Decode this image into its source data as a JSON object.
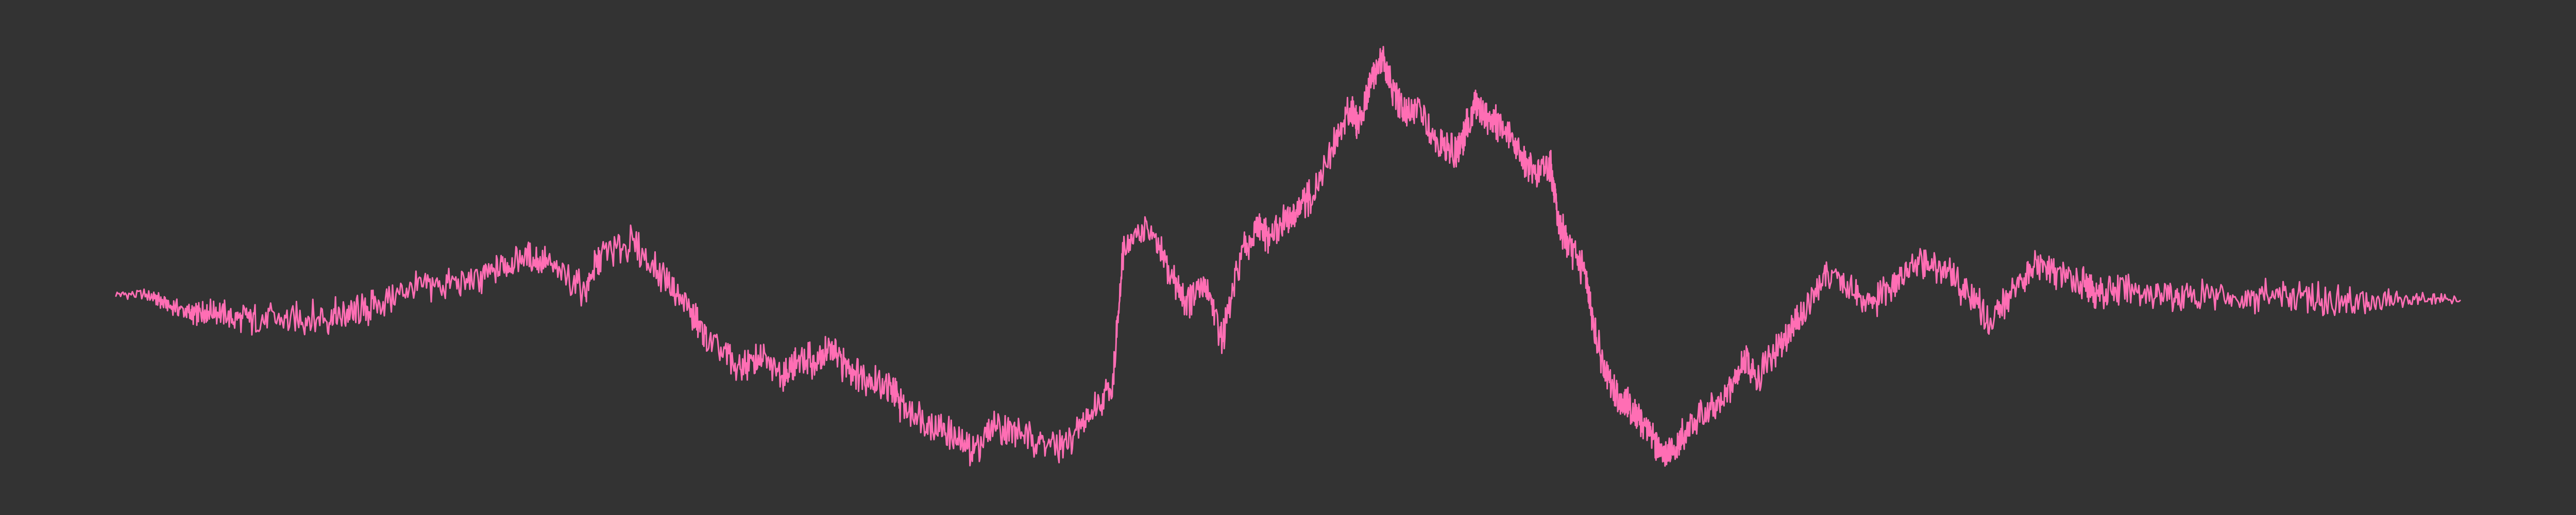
{
  "chart_data": {
    "type": "line",
    "title": "",
    "xlabel": "",
    "ylabel": "",
    "axes_visible": false,
    "grid": false,
    "legend": "none",
    "colors": {
      "background": "#333333",
      "line": "#ff6eb4"
    },
    "xlim": [
      0,
      1
    ],
    "ylim": [
      0,
      1
    ],
    "x": [
      0.0,
      0.015,
      0.02,
      0.03,
      0.035,
      0.04,
      0.05,
      0.06,
      0.075,
      0.09,
      0.1,
      0.11,
      0.125,
      0.14,
      0.155,
      0.165,
      0.175,
      0.185,
      0.2,
      0.207,
      0.22,
      0.235,
      0.245,
      0.252,
      0.265,
      0.275,
      0.285,
      0.29,
      0.3,
      0.305,
      0.312,
      0.32,
      0.33,
      0.335,
      0.345,
      0.355,
      0.365,
      0.375,
      0.385,
      0.395,
      0.405,
      0.415,
      0.425,
      0.43,
      0.44,
      0.45,
      0.457,
      0.465,
      0.472,
      0.48,
      0.487,
      0.492,
      0.5,
      0.505,
      0.51,
      0.52,
      0.527,
      0.53,
      0.535,
      0.54,
      0.545,
      0.55,
      0.555,
      0.565,
      0.572,
      0.575,
      0.58,
      0.585,
      0.59,
      0.597,
      0.605,
      0.612,
      0.615,
      0.62,
      0.627,
      0.63,
      0.635,
      0.64,
      0.645,
      0.65,
      0.655,
      0.66,
      0.665,
      0.67,
      0.68,
      0.69,
      0.695,
      0.7,
      0.71,
      0.715,
      0.72,
      0.73,
      0.74,
      0.75,
      0.76,
      0.77,
      0.78,
      0.79,
      0.8,
      0.81,
      0.82,
      0.83,
      0.84,
      0.845,
      0.855,
      0.87,
      0.88,
      0.895,
      0.91,
      0.925,
      0.94,
      0.955,
      0.97,
      0.985,
      1.0
    ],
    "y": [
      0.42,
      0.415,
      0.4,
      0.38,
      0.375,
      0.385,
      0.37,
      0.36,
      0.365,
      0.37,
      0.375,
      0.39,
      0.43,
      0.44,
      0.445,
      0.48,
      0.5,
      0.48,
      0.43,
      0.5,
      0.53,
      0.45,
      0.38,
      0.32,
      0.26,
      0.28,
      0.25,
      0.27,
      0.28,
      0.3,
      0.26,
      0.24,
      0.22,
      0.18,
      0.15,
      0.12,
      0.08,
      0.14,
      0.12,
      0.1,
      0.09,
      0.16,
      0.22,
      0.52,
      0.56,
      0.46,
      0.4,
      0.44,
      0.32,
      0.5,
      0.56,
      0.54,
      0.58,
      0.6,
      0.63,
      0.74,
      0.82,
      0.78,
      0.88,
      0.93,
      0.85,
      0.8,
      0.82,
      0.74,
      0.72,
      0.76,
      0.83,
      0.8,
      0.78,
      0.74,
      0.68,
      0.7,
      0.58,
      0.52,
      0.46,
      0.36,
      0.25,
      0.2,
      0.18,
      0.15,
      0.12,
      0.07,
      0.08,
      0.13,
      0.17,
      0.22,
      0.28,
      0.24,
      0.31,
      0.34,
      0.38,
      0.46,
      0.43,
      0.4,
      0.45,
      0.49,
      0.47,
      0.42,
      0.36,
      0.44,
      0.48,
      0.46,
      0.44,
      0.42,
      0.43,
      0.42,
      0.415,
      0.42,
      0.41,
      0.42,
      0.41,
      0.4,
      0.405,
      0.41,
      0.405
    ]
  }
}
